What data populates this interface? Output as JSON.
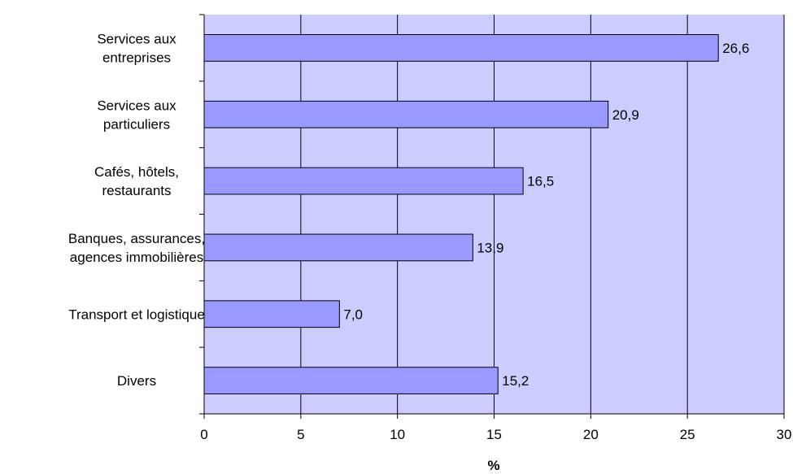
{
  "chart_data": {
    "type": "bar",
    "orientation": "horizontal",
    "categories": [
      [
        "Services aux",
        "entreprises"
      ],
      [
        "Services aux",
        "particuliers"
      ],
      [
        "Cafés, hôtels,",
        "restaurants"
      ],
      [
        "Banques, assurances,",
        "agences immobilières"
      ],
      [
        "Transport et logistique"
      ],
      [
        "Divers"
      ]
    ],
    "values": [
      26.6,
      20.9,
      16.5,
      13.9,
      7.0,
      15.2
    ],
    "value_labels": [
      "26,6",
      "20,9",
      "16,5",
      "13,9",
      "7,0",
      "15,2"
    ],
    "xlabel": "%",
    "ylabel": "",
    "title": "",
    "xlim": [
      0,
      30
    ],
    "xticks": [
      0,
      5,
      10,
      15,
      20,
      25,
      30
    ],
    "grid": true,
    "colors": {
      "plot_background": "#ccccff",
      "bar_fill": "#9999ff",
      "bar_stroke": "#000000",
      "gridline": "#000000"
    }
  }
}
